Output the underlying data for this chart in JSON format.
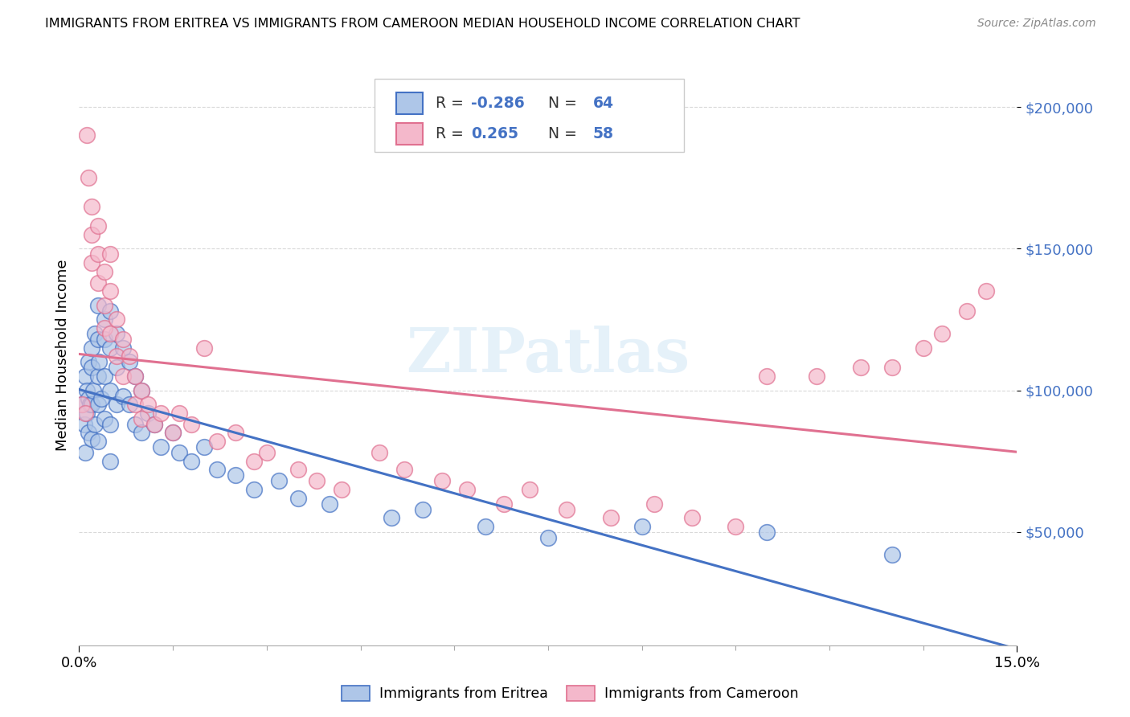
{
  "title": "IMMIGRANTS FROM ERITREA VS IMMIGRANTS FROM CAMEROON MEDIAN HOUSEHOLD INCOME CORRELATION CHART",
  "source": "Source: ZipAtlas.com",
  "ylabel": "Median Household Income",
  "xmin": 0.0,
  "xmax": 0.15,
  "ymin": 10000,
  "ymax": 215000,
  "legend_R1": "-0.286",
  "legend_N1": "64",
  "legend_R2": "0.265",
  "legend_N2": "58",
  "color_eritrea": "#aec6e8",
  "color_cameroon": "#f4b8cb",
  "line_color_eritrea": "#4472c4",
  "line_color_cameroon": "#e07090",
  "watermark": "ZIPatlas",
  "eritrea_x": [
    0.0005,
    0.0008,
    0.001,
    0.001,
    0.0012,
    0.0012,
    0.0015,
    0.0015,
    0.0015,
    0.0018,
    0.002,
    0.002,
    0.002,
    0.002,
    0.0022,
    0.0025,
    0.0025,
    0.003,
    0.003,
    0.003,
    0.003,
    0.003,
    0.0032,
    0.0035,
    0.004,
    0.004,
    0.004,
    0.004,
    0.005,
    0.005,
    0.005,
    0.005,
    0.005,
    0.006,
    0.006,
    0.006,
    0.007,
    0.007,
    0.008,
    0.008,
    0.009,
    0.009,
    0.01,
    0.01,
    0.011,
    0.012,
    0.013,
    0.015,
    0.016,
    0.018,
    0.02,
    0.022,
    0.025,
    0.028,
    0.032,
    0.035,
    0.04,
    0.05,
    0.055,
    0.065,
    0.075,
    0.09,
    0.11,
    0.13
  ],
  "eritrea_y": [
    95000,
    88000,
    105000,
    78000,
    100000,
    92000,
    110000,
    97000,
    85000,
    95000,
    115000,
    108000,
    95000,
    83000,
    100000,
    120000,
    88000,
    130000,
    118000,
    105000,
    95000,
    82000,
    110000,
    97000,
    125000,
    118000,
    105000,
    90000,
    128000,
    115000,
    100000,
    88000,
    75000,
    120000,
    108000,
    95000,
    115000,
    98000,
    110000,
    95000,
    105000,
    88000,
    100000,
    85000,
    92000,
    88000,
    80000,
    85000,
    78000,
    75000,
    80000,
    72000,
    70000,
    65000,
    68000,
    62000,
    60000,
    55000,
    58000,
    52000,
    48000,
    52000,
    50000,
    42000
  ],
  "cameroon_x": [
    0.0005,
    0.001,
    0.0012,
    0.0015,
    0.002,
    0.002,
    0.002,
    0.003,
    0.003,
    0.003,
    0.004,
    0.004,
    0.004,
    0.005,
    0.005,
    0.005,
    0.006,
    0.006,
    0.007,
    0.007,
    0.008,
    0.009,
    0.009,
    0.01,
    0.01,
    0.011,
    0.012,
    0.013,
    0.015,
    0.016,
    0.018,
    0.02,
    0.022,
    0.025,
    0.028,
    0.03,
    0.035,
    0.038,
    0.042,
    0.048,
    0.052,
    0.058,
    0.062,
    0.068,
    0.072,
    0.078,
    0.085,
    0.092,
    0.098,
    0.105,
    0.11,
    0.118,
    0.125,
    0.13,
    0.135,
    0.138,
    0.142,
    0.145
  ],
  "cameroon_y": [
    95000,
    92000,
    190000,
    175000,
    165000,
    155000,
    145000,
    158000,
    148000,
    138000,
    142000,
    130000,
    122000,
    148000,
    135000,
    120000,
    125000,
    112000,
    118000,
    105000,
    112000,
    105000,
    95000,
    100000,
    90000,
    95000,
    88000,
    92000,
    85000,
    92000,
    88000,
    115000,
    82000,
    85000,
    75000,
    78000,
    72000,
    68000,
    65000,
    78000,
    72000,
    68000,
    65000,
    60000,
    65000,
    58000,
    55000,
    60000,
    55000,
    52000,
    105000,
    105000,
    108000,
    108000,
    115000,
    120000,
    128000,
    135000
  ]
}
